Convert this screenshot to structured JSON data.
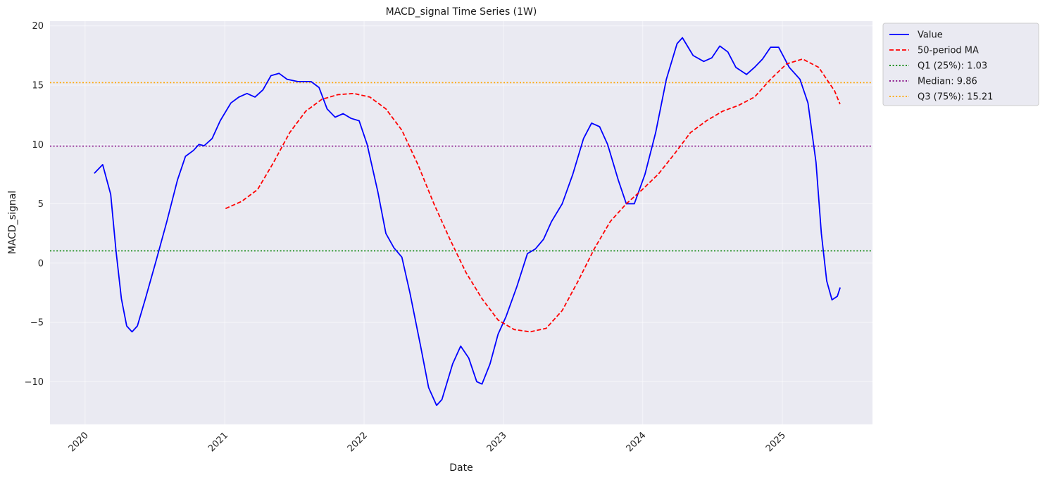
{
  "chart_data": {
    "type": "line",
    "title": "MACD_signal Time Series (1W)",
    "xlabel": "Date",
    "ylabel": "MACD_signal",
    "xlim": [
      "2019-10-01",
      "2025-08-25"
    ],
    "ylim": [
      -13.6,
      20.4
    ],
    "x_ticks": [
      "2020-01-01",
      "2021-01-01",
      "2022-01-01",
      "2023-01-01",
      "2024-01-01",
      "2025-01-01"
    ],
    "x_tick_labels": [
      "2020",
      "2021",
      "2022",
      "2023",
      "2024",
      "2025"
    ],
    "y_ticks": [
      -10,
      -5,
      0,
      5,
      10,
      15,
      20
    ],
    "y_tick_labels": [
      "−10",
      "−5",
      "0",
      "5",
      "10",
      "15",
      "20"
    ],
    "grid": true,
    "legend_position": "outside-top-right",
    "colors": {
      "plot_background": "#eaeaf2",
      "value": "#0000ff",
      "ma": "#ff0000",
      "q1": "#008000",
      "median": "#800080",
      "q3": "#ffa500"
    },
    "series": [
      {
        "name": "Value",
        "style": "solid",
        "color": "#0000ff",
        "points": [
          [
            "2020-01-26",
            7.6
          ],
          [
            "2020-02-16",
            8.3
          ],
          [
            "2020-03-08",
            5.8
          ],
          [
            "2020-03-22",
            1.0
          ],
          [
            "2020-04-05",
            -3.0
          ],
          [
            "2020-04-19",
            -5.3
          ],
          [
            "2020-05-03",
            -5.8
          ],
          [
            "2020-05-17",
            -5.3
          ],
          [
            "2020-06-07",
            -3.0
          ],
          [
            "2020-07-05",
            0.2
          ],
          [
            "2020-08-02",
            3.5
          ],
          [
            "2020-08-30",
            7.0
          ],
          [
            "2020-09-20",
            9.0
          ],
          [
            "2020-10-11",
            9.5
          ],
          [
            "2020-10-25",
            10.0
          ],
          [
            "2020-11-08",
            9.9
          ],
          [
            "2020-11-29",
            10.5
          ],
          [
            "2020-12-20",
            12.0
          ],
          [
            "2021-01-17",
            13.5
          ],
          [
            "2021-02-07",
            14.0
          ],
          [
            "2021-02-28",
            14.3
          ],
          [
            "2021-03-21",
            14.0
          ],
          [
            "2021-04-11",
            14.6
          ],
          [
            "2021-05-02",
            15.8
          ],
          [
            "2021-05-23",
            16.0
          ],
          [
            "2021-06-13",
            15.5
          ],
          [
            "2021-07-11",
            15.3
          ],
          [
            "2021-08-15",
            15.3
          ],
          [
            "2021-09-05",
            14.8
          ],
          [
            "2021-09-26",
            13.0
          ],
          [
            "2021-10-17",
            12.3
          ],
          [
            "2021-11-07",
            12.6
          ],
          [
            "2021-11-28",
            12.2
          ],
          [
            "2021-12-19",
            12.0
          ],
          [
            "2022-01-09",
            10.0
          ],
          [
            "2022-02-06",
            6.0
          ],
          [
            "2022-02-27",
            2.5
          ],
          [
            "2022-03-20",
            1.3
          ],
          [
            "2022-04-10",
            0.5
          ],
          [
            "2022-05-01",
            -2.5
          ],
          [
            "2022-05-29",
            -7.0
          ],
          [
            "2022-06-19",
            -10.5
          ],
          [
            "2022-07-10",
            -12.0
          ],
          [
            "2022-07-24",
            -11.5
          ],
          [
            "2022-08-21",
            -8.5
          ],
          [
            "2022-09-11",
            -7.0
          ],
          [
            "2022-10-02",
            -8.0
          ],
          [
            "2022-10-23",
            -10.0
          ],
          [
            "2022-11-06",
            -10.2
          ],
          [
            "2022-11-27",
            -8.5
          ],
          [
            "2022-12-18",
            -6.0
          ],
          [
            "2023-01-08",
            -4.5
          ],
          [
            "2023-02-05",
            -2.0
          ],
          [
            "2023-03-05",
            0.8
          ],
          [
            "2023-03-26",
            1.2
          ],
          [
            "2023-04-16",
            2.0
          ],
          [
            "2023-05-07",
            3.5
          ],
          [
            "2023-06-04",
            5.0
          ],
          [
            "2023-07-02",
            7.5
          ],
          [
            "2023-07-30",
            10.5
          ],
          [
            "2023-08-20",
            11.8
          ],
          [
            "2023-09-10",
            11.5
          ],
          [
            "2023-10-01",
            10.0
          ],
          [
            "2023-10-29",
            7.0
          ],
          [
            "2023-11-19",
            5.0
          ],
          [
            "2023-12-10",
            5.0
          ],
          [
            "2024-01-07",
            7.5
          ],
          [
            "2024-02-04",
            11.0
          ],
          [
            "2024-03-03",
            15.5
          ],
          [
            "2024-03-31",
            18.5
          ],
          [
            "2024-04-14",
            19.0
          ],
          [
            "2024-05-12",
            17.5
          ],
          [
            "2024-06-09",
            17.0
          ],
          [
            "2024-06-30",
            17.3
          ],
          [
            "2024-07-21",
            18.3
          ],
          [
            "2024-08-11",
            17.8
          ],
          [
            "2024-09-01",
            16.5
          ],
          [
            "2024-09-29",
            15.9
          ],
          [
            "2024-10-20",
            16.5
          ],
          [
            "2024-11-10",
            17.2
          ],
          [
            "2024-12-01",
            18.2
          ],
          [
            "2024-12-22",
            18.2
          ],
          [
            "2025-01-19",
            16.5
          ],
          [
            "2025-02-16",
            15.5
          ],
          [
            "2025-03-09",
            13.5
          ],
          [
            "2025-03-30",
            8.5
          ],
          [
            "2025-04-13",
            2.5
          ],
          [
            "2025-04-27",
            -1.5
          ],
          [
            "2025-05-11",
            -3.1
          ],
          [
            "2025-05-25",
            -2.8
          ],
          [
            "2025-06-01",
            -2.1
          ]
        ]
      },
      {
        "name": "50-period MA",
        "style": "dashed",
        "color": "#ff0000",
        "points": [
          [
            "2021-01-03",
            4.6
          ],
          [
            "2021-02-14",
            5.2
          ],
          [
            "2021-03-28",
            6.2
          ],
          [
            "2021-05-09",
            8.5
          ],
          [
            "2021-06-20",
            11.0
          ],
          [
            "2021-08-01",
            12.8
          ],
          [
            "2021-09-12",
            13.8
          ],
          [
            "2021-10-24",
            14.2
          ],
          [
            "2021-12-05",
            14.3
          ],
          [
            "2022-01-16",
            14.0
          ],
          [
            "2022-02-27",
            13.0
          ],
          [
            "2022-04-10",
            11.2
          ],
          [
            "2022-05-22",
            8.3
          ],
          [
            "2022-07-03",
            5.0
          ],
          [
            "2022-08-14",
            2.0
          ],
          [
            "2022-09-25",
            -0.8
          ],
          [
            "2022-11-06",
            -3.0
          ],
          [
            "2022-12-18",
            -4.8
          ],
          [
            "2023-01-29",
            -5.6
          ],
          [
            "2023-03-12",
            -5.8
          ],
          [
            "2023-04-23",
            -5.5
          ],
          [
            "2023-06-04",
            -4.0
          ],
          [
            "2023-07-16",
            -1.5
          ],
          [
            "2023-08-27",
            1.2
          ],
          [
            "2023-10-08",
            3.5
          ],
          [
            "2023-11-19",
            5.0
          ],
          [
            "2023-12-31",
            6.2
          ],
          [
            "2024-02-11",
            7.5
          ],
          [
            "2024-03-24",
            9.2
          ],
          [
            "2024-05-05",
            11.0
          ],
          [
            "2024-06-16",
            12.0
          ],
          [
            "2024-07-28",
            12.8
          ],
          [
            "2024-09-08",
            13.3
          ],
          [
            "2024-10-20",
            14.0
          ],
          [
            "2024-12-01",
            15.5
          ],
          [
            "2025-01-12",
            16.8
          ],
          [
            "2025-02-23",
            17.2
          ],
          [
            "2025-04-06",
            16.5
          ],
          [
            "2025-05-18",
            14.5
          ],
          [
            "2025-06-01",
            13.4
          ]
        ]
      }
    ],
    "hlines": [
      {
        "name": "Q1 (25%): 1.03",
        "y": 1.03,
        "color": "#008000"
      },
      {
        "name": "Median: 9.86",
        "y": 9.86,
        "color": "#800080"
      },
      {
        "name": "Q3 (75%): 15.21",
        "y": 15.21,
        "color": "#ffa500"
      }
    ]
  }
}
